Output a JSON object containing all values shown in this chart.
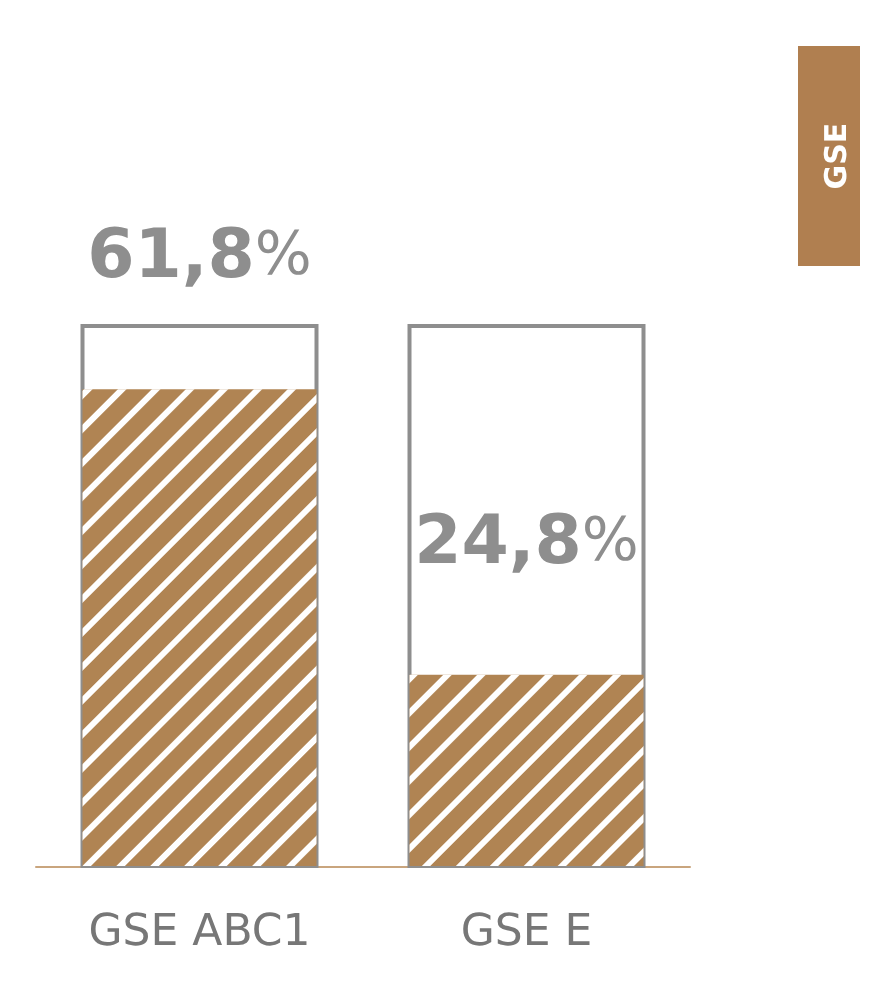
{
  "chart_data": {
    "type": "bar",
    "categories": [
      "GSE ABC1",
      "GSE E"
    ],
    "values": [
      61.8,
      24.8
    ],
    "color": "#b08453",
    "tick_labels": "x",
    "value_labels": [
      "61,8%",
      "24,8%"
    ],
    "annotations": [
      "GSE"
    ]
  }
}
